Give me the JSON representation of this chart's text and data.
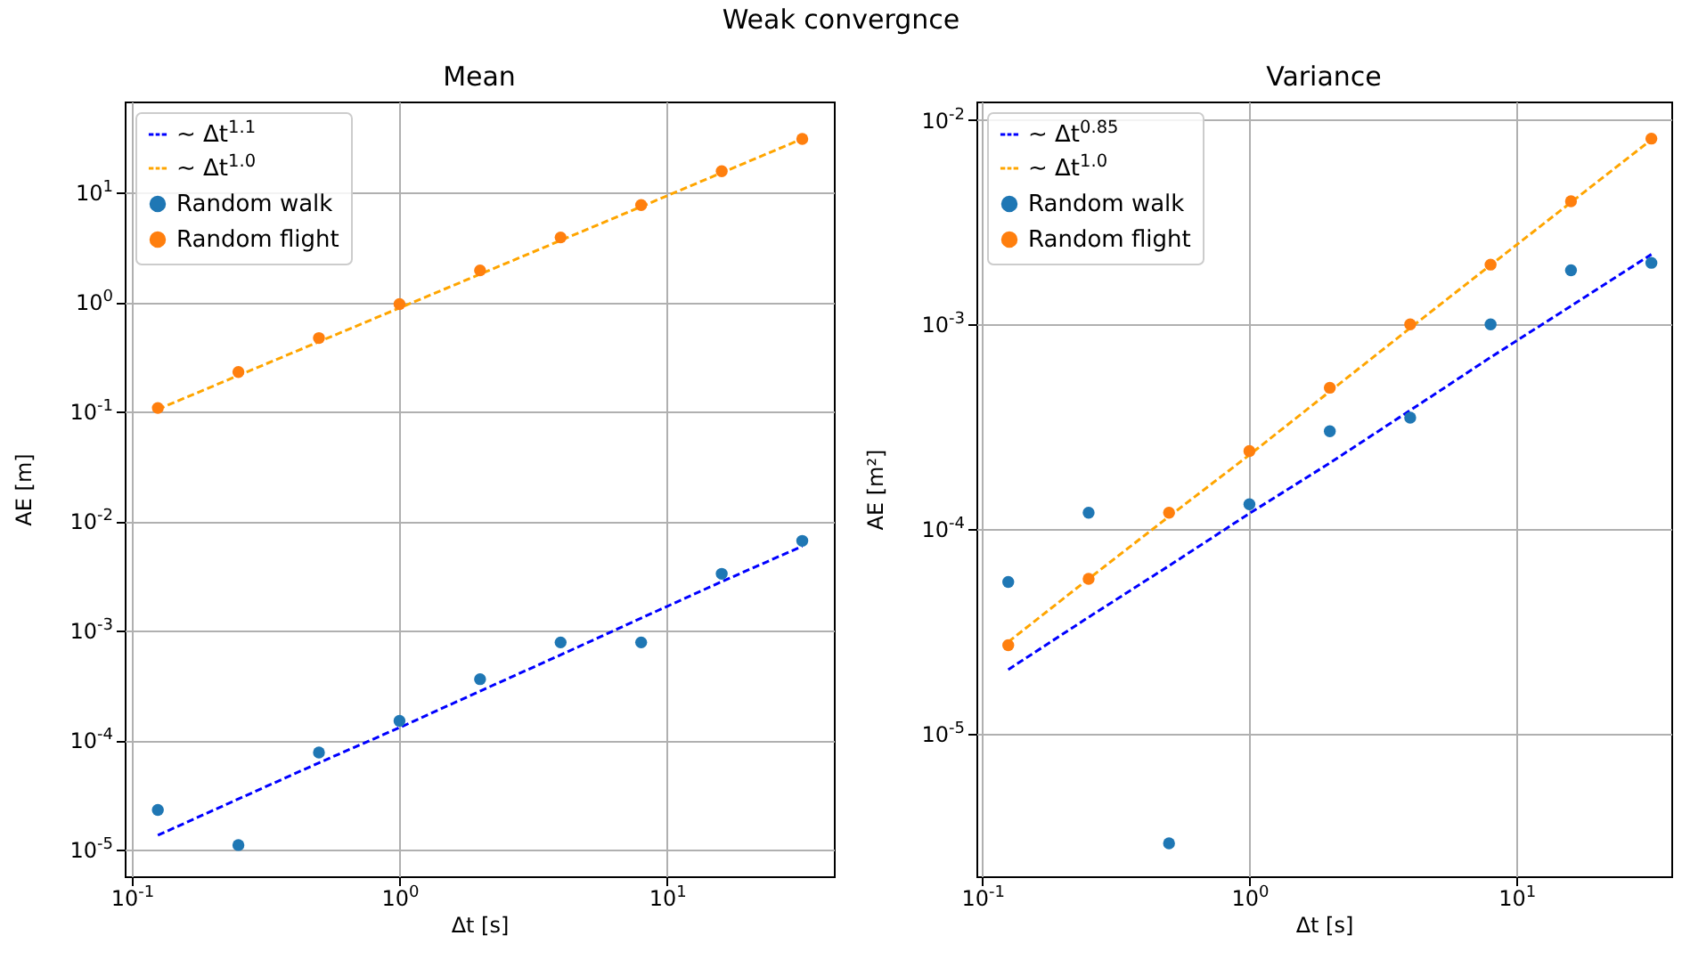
{
  "chart_data": [
    {
      "type": "other",
      "title": "Weak convergnce"
    },
    {
      "type": "scatter",
      "title": "Mean",
      "xlabel": "Δt [s]",
      "ylabel": "AE [m]",
      "log": "xy",
      "grid": true,
      "legend": "top left",
      "xlim": [
        0.094,
        42
      ],
      "ylim": [
        5.7e-06,
        68
      ],
      "xticks": [
        {
          "value": 0.1,
          "label": "10$^{-1}$"
        },
        {
          "value": 1,
          "label": "10$^{0}$"
        },
        {
          "value": 10,
          "label": "10$^{1}$"
        }
      ],
      "yticks": [
        {
          "value": 1e-05,
          "label": "10$^{-5}$"
        },
        {
          "value": 0.0001,
          "label": "10$^{-4}$"
        },
        {
          "value": 0.001,
          "label": "10$^{-3}$"
        },
        {
          "value": 0.01,
          "label": "10$^{-2}$"
        },
        {
          "value": 0.1,
          "label": "10$^{-1}$"
        },
        {
          "value": 1,
          "label": "10$^{0}$"
        },
        {
          "value": 10,
          "label": "10$^{1}$"
        }
      ],
      "x": [
        0.125,
        0.25,
        0.5,
        1,
        2,
        4,
        8,
        16,
        32
      ],
      "series": [
        {
          "name": "∼ Δt$^{1.1}$",
          "type": "line",
          "line_style": "dashed",
          "color": "#0000ff",
          "values": [
            1.35e-05,
            2.9e-05,
            6.2e-05,
            0.00013,
            0.00028,
            0.0006,
            0.0013,
            0.0028,
            0.0059
          ]
        },
        {
          "name": "∼ Δt$^{1.0}$",
          "type": "line",
          "line_style": "dashed",
          "color": "#ffa500",
          "values": [
            0.105,
            0.214,
            0.435,
            0.885,
            1.8,
            3.66,
            7.45,
            15.2,
            31
          ]
        },
        {
          "name": "Random walk",
          "type": "scatter",
          "marker": "circle",
          "color": "#1f77b4",
          "values": [
            2.3e-05,
            1.1e-05,
            7.7e-05,
            0.00015,
            0.00036,
            0.00078,
            0.00078,
            0.0033,
            0.0066
          ]
        },
        {
          "name": "Random flight",
          "type": "scatter",
          "marker": "circle",
          "color": "#ff7f0e",
          "values": [
            0.108,
            0.23,
            0.47,
            0.96,
            1.95,
            3.9,
            7.7,
            15.7,
            31
          ]
        }
      ]
    },
    {
      "type": "scatter",
      "title": "Variance",
      "xlabel": "Δt [s]",
      "ylabel": "AE [m²]",
      "log": "xy",
      "grid": true,
      "legend": "top left",
      "xlim": [
        0.095,
        38
      ],
      "ylim": [
        2e-06,
        0.0123
      ],
      "xticks": [
        {
          "value": 0.1,
          "label": "10$^{-1}$"
        },
        {
          "value": 1,
          "label": "10$^{0}$"
        },
        {
          "value": 10,
          "label": "10$^{1}$"
        }
      ],
      "yticks": [
        {
          "value": 1e-05,
          "label": "10$^{-5}$"
        },
        {
          "value": 0.0001,
          "label": "10$^{-4}$"
        },
        {
          "value": 0.001,
          "label": "10$^{-3}$"
        },
        {
          "value": 0.01,
          "label": "10$^{-2}$"
        }
      ],
      "x": [
        0.125,
        0.25,
        0.5,
        1,
        2,
        4,
        8,
        16,
        32
      ],
      "series": [
        {
          "name": "∼ Δt$^{0.85}$",
          "type": "line",
          "line_style": "dashed",
          "color": "#0000ff",
          "values": [
            2.05e-05,
            3.7e-05,
            6.6e-05,
            0.000119,
            0.00021,
            0.00038,
            0.00069,
            0.00123,
            0.0022
          ]
        },
        {
          "name": "∼ Δt$^{1.0}$",
          "type": "line",
          "line_style": "dashed",
          "color": "#ffa500",
          "values": [
            2.8e-05,
            5.7e-05,
            0.000115,
            0.00023,
            0.00047,
            0.00096,
            0.00195,
            0.00395,
            0.008
          ]
        },
        {
          "name": "Random walk",
          "type": "scatter",
          "marker": "circle",
          "color": "#1f77b4",
          "values": [
            5.5e-05,
            0.00012,
            2.9e-06,
            0.000132,
            0.0003,
            0.00035,
            0.001,
            0.00184,
            0.002
          ]
        },
        {
          "name": "Random flight",
          "type": "scatter",
          "marker": "circle",
          "color": "#ff7f0e",
          "values": [
            2.7e-05,
            5.7e-05,
            0.00012,
            0.00024,
            0.00049,
            0.001,
            0.00196,
            0.004,
            0.0081
          ]
        }
      ]
    }
  ]
}
